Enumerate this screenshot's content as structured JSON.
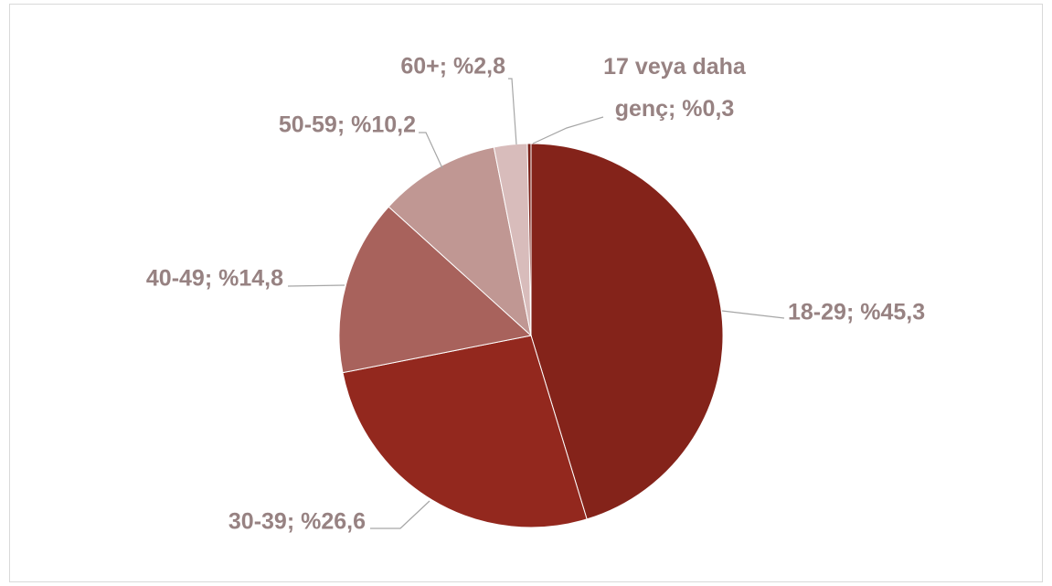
{
  "chart_data": {
    "type": "pie",
    "labels": [
      "18-29; %45,3",
      "30-39; %26,6",
      "40-49; %14,8",
      "50-59; %10,2",
      "60+; %2,8",
      "17 veya daha genç; %0,3"
    ],
    "values": [
      45.3,
      26.6,
      14.8,
      10.2,
      2.8,
      0.3
    ],
    "colors": [
      "#84231a",
      "#93281e",
      "#a8625c",
      "#c09793",
      "#d8bcbb",
      "#7a2018"
    ]
  }
}
